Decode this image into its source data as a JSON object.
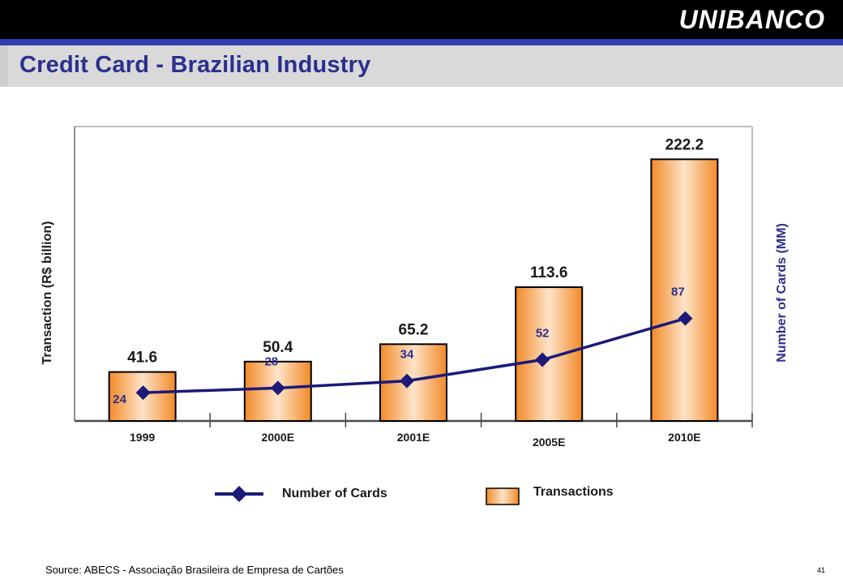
{
  "brand": "UNIBANCO",
  "title": "Credit Card - Brazilian Industry",
  "source": "Source: ABECS - Associação Brasileira de Empresa de Cartões",
  "page_number": "41",
  "colors": {
    "bar_fill_light": "#fde3c8",
    "bar_fill_dark": "#f28a28",
    "bar_border": "#000000",
    "line": "#1b1a7a",
    "title": "#2c2f8f",
    "card_label": "#2c2f8f",
    "header_bg": "#000000",
    "stripe": "#2e3fb0",
    "title_bg": "#d9d9d9"
  },
  "legend": {
    "cards_label": "Number of Cards",
    "transactions_label": "Transactions"
  },
  "chart_data": {
    "type": "bar",
    "categories": [
      "1999",
      "2000E",
      "2001E",
      "2005E",
      "2010E"
    ],
    "series": [
      {
        "name": "Transactions",
        "type": "bar",
        "axis": "left",
        "values": [
          41.6,
          50.4,
          65.2,
          113.6,
          222.2
        ]
      },
      {
        "name": "Number of Cards",
        "type": "line",
        "axis": "right",
        "values": [
          24,
          28,
          34,
          52,
          87
        ]
      }
    ],
    "ylabel": "Transaction (R$ billion)",
    "y2label": "Number of Cards (MM)",
    "ylim": [
      0,
      250
    ],
    "y2lim": [
      0,
      250
    ],
    "grid": false,
    "legend_position": "bottom"
  }
}
